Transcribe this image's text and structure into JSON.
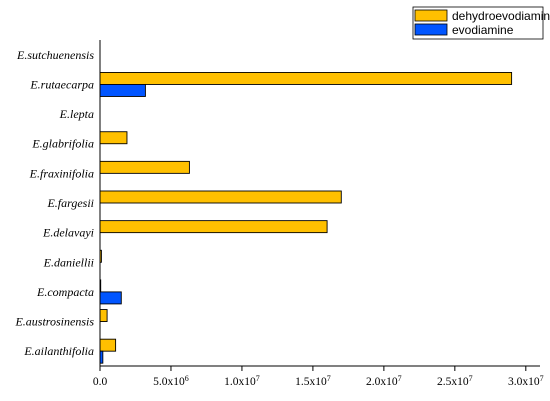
{
  "chart_data": {
    "type": "bar",
    "orientation": "horizontal",
    "categories": [
      "E.sutchuenensis",
      "E.rutaecarpa",
      "E.lepta",
      "E.glabrifolia",
      "E.fraxinifolia",
      "E.fargesii",
      "E.delavayi",
      "E.daniellii",
      "E.compacta",
      "E.austrosinensis",
      "E.ailanthifolia"
    ],
    "series": [
      {
        "name": "dehydroevodiamine",
        "color": "#FFC000",
        "values": [
          0,
          29000000,
          0,
          1900000,
          6300000,
          17000000,
          16000000,
          100000,
          50000,
          500000,
          1100000
        ]
      },
      {
        "name": "evodiamine",
        "color": "#0055FF",
        "values": [
          0,
          3200000,
          0,
          0,
          0,
          0,
          0,
          0,
          1500000,
          0,
          200000
        ]
      }
    ],
    "xlim": [
      0,
      31000000
    ],
    "x_ticks": [
      0,
      5000000,
      10000000,
      15000000,
      20000000,
      25000000,
      30000000
    ],
    "x_tick_labels": [
      {
        "base": "0.0",
        "exp": ""
      },
      {
        "base": "5.0x10",
        "exp": "6"
      },
      {
        "base": "1.0x10",
        "exp": "7"
      },
      {
        "base": "1.5x10",
        "exp": "7"
      },
      {
        "base": "2.0x10",
        "exp": "7"
      },
      {
        "base": "2.5x10",
        "exp": "7"
      },
      {
        "base": "3.0x10",
        "exp": "7"
      }
    ],
    "title": "",
    "xlabel": "",
    "ylabel": "",
    "grid": false,
    "legend_position": "top-right"
  }
}
